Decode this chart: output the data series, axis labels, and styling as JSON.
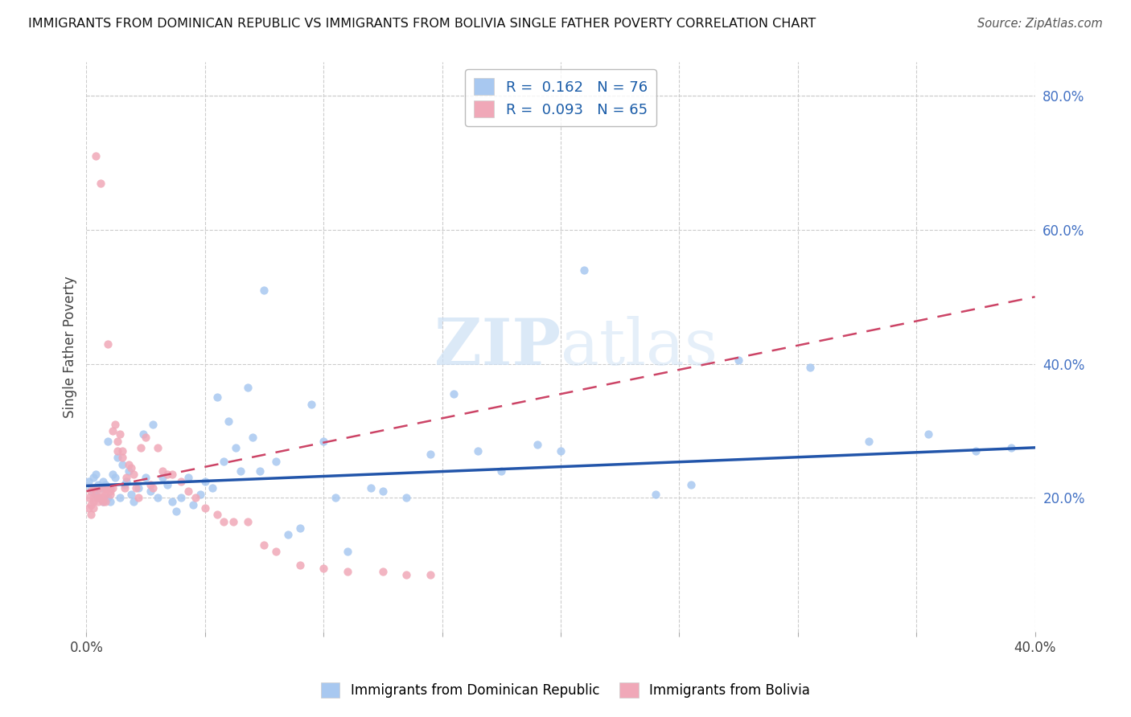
{
  "title": "IMMIGRANTS FROM DOMINICAN REPUBLIC VS IMMIGRANTS FROM BOLIVIA SINGLE FATHER POVERTY CORRELATION CHART",
  "source": "Source: ZipAtlas.com",
  "xlabel_blue": "Immigrants from Dominican Republic",
  "xlabel_pink": "Immigrants from Bolivia",
  "ylabel": "Single Father Poverty",
  "xlim": [
    0.0,
    0.4
  ],
  "ylim": [
    0.0,
    0.85
  ],
  "x_ticks": [
    0.0,
    0.05,
    0.1,
    0.15,
    0.2,
    0.25,
    0.3,
    0.35,
    0.4
  ],
  "y_ticks_right": [
    0.2,
    0.4,
    0.6,
    0.8
  ],
  "y_tick_labels_right": [
    "20.0%",
    "40.0%",
    "60.0%",
    "80.0%"
  ],
  "blue_R": 0.162,
  "blue_N": 76,
  "pink_R": 0.093,
  "pink_N": 65,
  "blue_color": "#a8c8f0",
  "pink_color": "#f0a8b8",
  "blue_line_color": "#2255aa",
  "pink_line_color": "#cc4466",
  "watermark_color": "#cce0f5",
  "blue_points_x": [
    0.001,
    0.002,
    0.003,
    0.003,
    0.004,
    0.004,
    0.005,
    0.005,
    0.006,
    0.007,
    0.007,
    0.008,
    0.009,
    0.009,
    0.01,
    0.01,
    0.011,
    0.012,
    0.013,
    0.014,
    0.015,
    0.016,
    0.017,
    0.018,
    0.019,
    0.02,
    0.022,
    0.024,
    0.025,
    0.027,
    0.028,
    0.03,
    0.032,
    0.034,
    0.036,
    0.038,
    0.04,
    0.043,
    0.045,
    0.048,
    0.05,
    0.053,
    0.055,
    0.058,
    0.06,
    0.063,
    0.065,
    0.068,
    0.07,
    0.073,
    0.075,
    0.08,
    0.085,
    0.09,
    0.095,
    0.1,
    0.105,
    0.11,
    0.12,
    0.125,
    0.135,
    0.145,
    0.155,
    0.165,
    0.175,
    0.19,
    0.2,
    0.21,
    0.24,
    0.255,
    0.275,
    0.305,
    0.33,
    0.355,
    0.375,
    0.39
  ],
  "blue_points_y": [
    0.225,
    0.215,
    0.21,
    0.23,
    0.205,
    0.235,
    0.22,
    0.2,
    0.215,
    0.225,
    0.195,
    0.22,
    0.2,
    0.285,
    0.215,
    0.195,
    0.235,
    0.23,
    0.26,
    0.2,
    0.25,
    0.22,
    0.225,
    0.24,
    0.205,
    0.195,
    0.215,
    0.295,
    0.23,
    0.21,
    0.31,
    0.2,
    0.23,
    0.22,
    0.195,
    0.18,
    0.2,
    0.23,
    0.19,
    0.205,
    0.225,
    0.215,
    0.35,
    0.255,
    0.315,
    0.275,
    0.24,
    0.365,
    0.29,
    0.24,
    0.51,
    0.255,
    0.145,
    0.155,
    0.34,
    0.285,
    0.2,
    0.12,
    0.215,
    0.21,
    0.2,
    0.265,
    0.355,
    0.27,
    0.24,
    0.28,
    0.27,
    0.54,
    0.205,
    0.22,
    0.405,
    0.395,
    0.285,
    0.295,
    0.27,
    0.275
  ],
  "pink_points_x": [
    0.001,
    0.001,
    0.002,
    0.002,
    0.002,
    0.003,
    0.003,
    0.003,
    0.003,
    0.004,
    0.004,
    0.005,
    0.005,
    0.005,
    0.006,
    0.006,
    0.007,
    0.007,
    0.007,
    0.008,
    0.008,
    0.008,
    0.009,
    0.009,
    0.01,
    0.01,
    0.011,
    0.011,
    0.012,
    0.013,
    0.013,
    0.014,
    0.015,
    0.015,
    0.016,
    0.017,
    0.018,
    0.019,
    0.02,
    0.021,
    0.022,
    0.023,
    0.025,
    0.027,
    0.028,
    0.03,
    0.032,
    0.034,
    0.036,
    0.04,
    0.043,
    0.046,
    0.05,
    0.055,
    0.058,
    0.062,
    0.068,
    0.075,
    0.08,
    0.09,
    0.1,
    0.11,
    0.125,
    0.135,
    0.145
  ],
  "pink_points_y": [
    0.2,
    0.185,
    0.175,
    0.21,
    0.19,
    0.2,
    0.185,
    0.215,
    0.195,
    0.205,
    0.71,
    0.2,
    0.195,
    0.215,
    0.2,
    0.67,
    0.195,
    0.21,
    0.2,
    0.205,
    0.215,
    0.195,
    0.43,
    0.215,
    0.205,
    0.21,
    0.3,
    0.215,
    0.31,
    0.27,
    0.285,
    0.295,
    0.26,
    0.27,
    0.215,
    0.23,
    0.25,
    0.245,
    0.235,
    0.215,
    0.2,
    0.275,
    0.29,
    0.22,
    0.215,
    0.275,
    0.24,
    0.235,
    0.235,
    0.225,
    0.21,
    0.2,
    0.185,
    0.175,
    0.165,
    0.165,
    0.165,
    0.13,
    0.12,
    0.1,
    0.095,
    0.09,
    0.09,
    0.085,
    0.085
  ],
  "blue_trend_x": [
    0.0,
    0.4
  ],
  "blue_trend_y": [
    0.218,
    0.275
  ],
  "pink_trend_x": [
    0.0,
    0.4
  ],
  "pink_trend_y": [
    0.21,
    0.5
  ]
}
